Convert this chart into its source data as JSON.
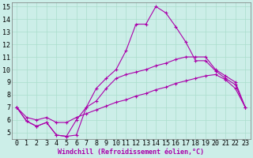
{
  "xlabel": "Windchill (Refroidissement éolien,°C)",
  "background_color": "#cceee8",
  "grid_color": "#aaddcc",
  "line_color": "#aa00aa",
  "xlim": [
    -0.5,
    23.5
  ],
  "ylim": [
    4.5,
    15.3
  ],
  "xticks": [
    0,
    1,
    2,
    3,
    4,
    5,
    6,
    7,
    8,
    9,
    10,
    11,
    12,
    13,
    14,
    15,
    16,
    17,
    18,
    19,
    20,
    21,
    22,
    23
  ],
  "yticks": [
    5,
    6,
    7,
    8,
    9,
    10,
    11,
    12,
    13,
    14,
    15
  ],
  "line1_x": [
    0,
    1,
    2,
    3,
    4,
    5,
    6,
    7,
    8,
    9,
    10,
    11,
    12,
    13,
    14,
    15,
    16,
    17,
    18,
    19,
    20,
    21,
    22,
    23
  ],
  "line1_y": [
    7.0,
    5.9,
    5.5,
    5.8,
    4.8,
    4.7,
    4.8,
    7.0,
    8.5,
    9.3,
    10.0,
    11.5,
    13.6,
    13.6,
    15.0,
    14.5,
    13.4,
    12.2,
    10.7,
    10.7,
    9.9,
    9.3,
    8.8,
    7.0
  ],
  "line2_x": [
    0,
    1,
    2,
    3,
    4,
    5,
    6,
    7,
    8,
    9,
    10,
    11,
    12,
    13,
    14,
    15,
    16,
    17,
    18,
    19,
    20,
    21,
    22,
    23
  ],
  "line2_y": [
    7.0,
    5.9,
    5.5,
    5.8,
    4.8,
    4.7,
    6.0,
    7.0,
    7.5,
    8.5,
    9.3,
    9.6,
    9.8,
    10.0,
    10.3,
    10.5,
    10.8,
    11.0,
    11.0,
    11.0,
    10.0,
    9.5,
    9.0,
    7.0
  ],
  "line3_x": [
    0,
    1,
    2,
    3,
    4,
    5,
    6,
    7,
    8,
    9,
    10,
    11,
    12,
    13,
    14,
    15,
    16,
    17,
    18,
    19,
    20,
    21,
    22,
    23
  ],
  "line3_y": [
    7.0,
    6.2,
    6.0,
    6.2,
    5.8,
    5.8,
    6.2,
    6.5,
    6.8,
    7.1,
    7.4,
    7.6,
    7.9,
    8.1,
    8.4,
    8.6,
    8.9,
    9.1,
    9.3,
    9.5,
    9.6,
    9.2,
    8.5,
    7.0
  ],
  "marker": "+",
  "markersize": 3,
  "linewidth": 0.8,
  "xlabel_fontsize": 6,
  "tick_fontsize": 6
}
